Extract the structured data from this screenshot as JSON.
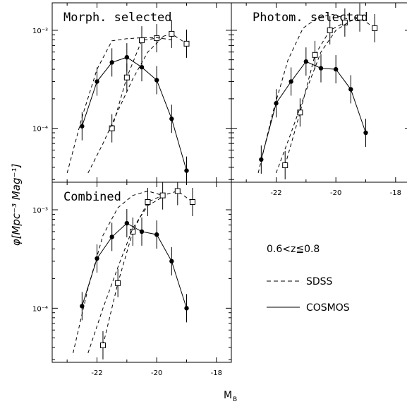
{
  "figure": {
    "ylabel": "φ[Mpc⁻³ Mag⁻¹]",
    "xlabel_main": "M",
    "xlabel_sub": "B",
    "legend": {
      "redshift": "0.6<z≦0.8",
      "sdss_label": "SDSS",
      "cosmos_label": "COSMOS"
    }
  },
  "chart_data": [
    {
      "type": "line",
      "title": "Morph. selected",
      "xlim": [
        -23.5,
        -17.5
      ],
      "ylim_log10": [
        -4.55,
        -2.72
      ],
      "yscale": "log",
      "y_tick_labels": [
        "10⁻³",
        "10⁻⁴"
      ],
      "x_tick_labels": [],
      "series": [
        {
          "name": "COSMOS",
          "style": "solid-filled-circles",
          "x": [
            -22.5,
            -22.0,
            -21.5,
            -21.0,
            -20.5,
            -20.0,
            -19.5,
            -19.0
          ],
          "y": [
            0.000105,
            0.0003,
            0.00047,
            0.00053,
            0.00042,
            0.00031,
            0.000125,
            3.7e-05
          ]
        },
        {
          "name": "SDSS (open squares)",
          "style": "dashed-open-squares",
          "x": [
            -21.5,
            -21.0,
            -20.5,
            -20.0,
            -19.5,
            -19.0
          ],
          "y": [
            0.0001,
            0.00033,
            0.00079,
            0.00083,
            0.00092,
            0.00073
          ]
        },
        {
          "name": "SDSS",
          "style": "dashed",
          "x": [
            -23.0,
            -22.5,
            -22.0,
            -21.5,
            -21.0,
            -20.5,
            -20.0,
            -19.5
          ],
          "y": [
            3.5e-05,
            0.00013,
            0.0004,
            0.00078,
            0.00082,
            0.00084,
            0.00084,
            0.0008
          ]
        },
        {
          "name": "SDSS",
          "style": "dashed",
          "x": [
            -22.3,
            -21.8,
            -21.3,
            -20.8,
            -20.3,
            -19.8
          ],
          "y": [
            3.5e-05,
            7e-05,
            0.00015,
            0.00032,
            0.0006,
            0.00085
          ]
        }
      ]
    },
    {
      "type": "line",
      "title": "Photom. selected",
      "xlim": [
        -23.5,
        -17.5
      ],
      "ylim_log10": [
        -4.55,
        -2.72
      ],
      "yscale": "log",
      "y_tick_labels": [],
      "x_tick_labels": [
        "-22",
        "-20",
        "-18"
      ],
      "series": [
        {
          "name": "COSMOS",
          "style": "solid-filled-circles",
          "x": [
            -22.5,
            -22.0,
            -21.5,
            -21.0,
            -20.5,
            -20.0,
            -19.5,
            -19.0
          ],
          "y": [
            4.8e-05,
            0.00018,
            0.0003,
            0.00048,
            0.00041,
            0.0004,
            0.00025,
            9e-05
          ]
        },
        {
          "name": "SDSS (open squares)",
          "style": "dashed-open-squares",
          "x": [
            -21.7,
            -21.2,
            -20.7,
            -20.2,
            -19.7,
            -19.2,
            -18.7
          ],
          "y": [
            4.2e-05,
            0.000145,
            0.00056,
            0.001,
            0.0012,
            0.00135,
            0.00105
          ]
        },
        {
          "name": "SDSS",
          "style": "dashed",
          "x": [
            -22.6,
            -22.1,
            -21.6,
            -21.1,
            -20.6,
            -20.1,
            -19.6
          ],
          "y": [
            3.5e-05,
            0.00015,
            0.0005,
            0.00105,
            0.00135,
            0.00145,
            0.0013
          ]
        },
        {
          "name": "SDSS",
          "style": "dashed",
          "x": [
            -22.0,
            -21.5,
            -21.0,
            -20.5,
            -20.0,
            -19.5
          ],
          "y": [
            3.5e-05,
            9e-05,
            0.00024,
            0.0006,
            0.001,
            0.00125
          ]
        }
      ]
    },
    {
      "type": "line",
      "title": "Combined",
      "xlim": [
        -23.5,
        -17.5
      ],
      "ylim_log10": [
        -4.55,
        -2.72
      ],
      "yscale": "log",
      "y_tick_labels": [
        "10⁻³",
        "10⁻⁴"
      ],
      "x_tick_labels": [
        "-22",
        "-20",
        "-18"
      ],
      "series": [
        {
          "name": "COSMOS",
          "style": "solid-filled-circles",
          "x": [
            -22.5,
            -22.0,
            -21.5,
            -21.0,
            -20.5,
            -20.0,
            -19.5,
            -19.0
          ],
          "y": [
            0.000105,
            0.00032,
            0.00053,
            0.00073,
            0.0006,
            0.00056,
            0.0003,
            0.0001
          ]
        },
        {
          "name": "SDSS (open squares)",
          "style": "dashed-open-squares",
          "x": [
            -21.8,
            -21.3,
            -20.8,
            -20.3,
            -19.8,
            -19.3,
            -18.8
          ],
          "y": [
            4.2e-05,
            0.00018,
            0.0006,
            0.0012,
            0.0014,
            0.00155,
            0.0012
          ]
        },
        {
          "name": "SDSS",
          "style": "dashed",
          "x": [
            -22.8,
            -22.3,
            -21.8,
            -21.3,
            -20.8,
            -20.3,
            -19.8
          ],
          "y": [
            3.5e-05,
            0.00016,
            0.00055,
            0.00105,
            0.0014,
            0.00155,
            0.0014
          ]
        },
        {
          "name": "SDSS",
          "style": "dashed",
          "x": [
            -22.3,
            -21.8,
            -21.3,
            -20.8,
            -20.3,
            -19.8
          ],
          "y": [
            3.5e-05,
            0.0001,
            0.00026,
            0.00065,
            0.0011,
            0.00135
          ]
        }
      ]
    }
  ]
}
